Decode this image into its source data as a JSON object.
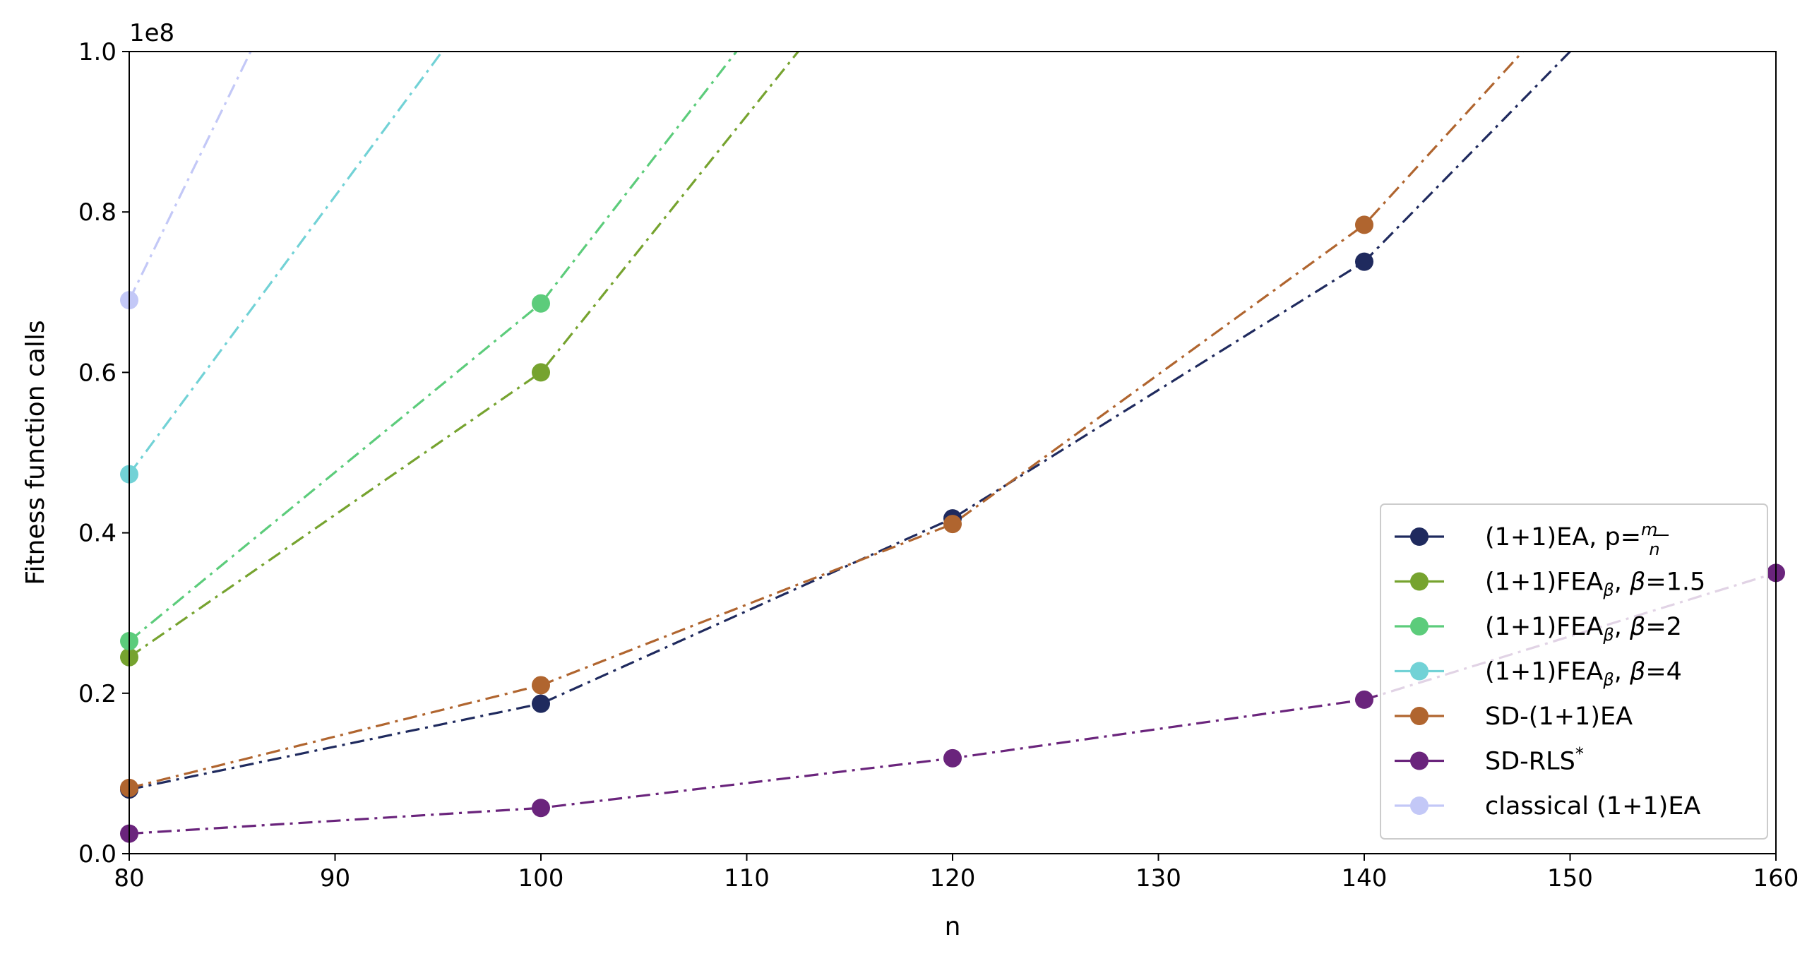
{
  "chart_data": {
    "type": "line",
    "xlabel": "n",
    "ylabel": "Fitness function calls",
    "y_scale_label": "1e8",
    "xlim": [
      80,
      160
    ],
    "ylim": [
      0,
      100000000
    ],
    "x_ticks": [
      80,
      90,
      100,
      110,
      120,
      130,
      140,
      150,
      160
    ],
    "x_tick_labels": [
      "80",
      "90",
      "100",
      "110",
      "120",
      "130",
      "140",
      "150",
      "160"
    ],
    "y_ticks": [
      0,
      20000000,
      40000000,
      60000000,
      80000000,
      100000000
    ],
    "y_tick_labels": [
      "0.0",
      "0.2",
      "0.4",
      "0.6",
      "0.8",
      "1.0"
    ],
    "grid": false,
    "legend_position": "lower-right",
    "line_style": "dash-dot",
    "series": [
      {
        "name": "(1+1)EA, p=m/n",
        "legend": {
          "base": "(1+1)EA, p=",
          "frac_num": "m",
          "frac_den": "n"
        },
        "color": "#1f2a5e",
        "x": [
          80,
          100,
          120,
          140,
          150
        ],
        "values": [
          8000000,
          18700000,
          41800000,
          73800000,
          100000000
        ]
      },
      {
        "name": "(1+1)FEAβ, β=1.5",
        "legend": {
          "base": "(1+1)FEA",
          "sub": "β",
          "rest": ", ",
          "param": "β",
          "tail": "=1.5"
        },
        "color": "#76a32f",
        "x": [
          80,
          100,
          112.5
        ],
        "values": [
          24500000,
          60000000,
          100000000
        ]
      },
      {
        "name": "(1+1)FEAβ, β=2",
        "legend": {
          "base": "(1+1)FEA",
          "sub": "β",
          "rest": ", ",
          "param": "β",
          "tail": "=2"
        },
        "color": "#5ccc7b",
        "x": [
          80,
          100,
          109.5
        ],
        "values": [
          26500000,
          68600000,
          100000000
        ]
      },
      {
        "name": "(1+1)FEAβ, β=4",
        "legend": {
          "base": "(1+1)FEA",
          "sub": "β",
          "rest": ", ",
          "param": "β",
          "tail": "=4"
        },
        "color": "#72d2d6",
        "x": [
          80,
          95.2
        ],
        "values": [
          47300000,
          100000000
        ]
      },
      {
        "name": "SD-(1+1)EA",
        "legend": {
          "base": "SD-(1+1)EA"
        },
        "color": "#b0652f",
        "x": [
          80,
          100,
          120,
          140,
          147.7
        ],
        "values": [
          8200000,
          21000000,
          41100000,
          78400000,
          100000000
        ]
      },
      {
        "name": "SD-RLS*",
        "legend": {
          "base": "SD-RLS",
          "sup": "*"
        },
        "color": "#6a247c",
        "x": [
          80,
          100,
          120,
          140,
          160
        ],
        "values": [
          2500000,
          5700000,
          11900000,
          19200000,
          35000000
        ]
      },
      {
        "name": "classical (1+1)EA",
        "legend": {
          "base": "classical (1+1)EA"
        },
        "color": "#c3c8f7",
        "x": [
          80,
          85.9
        ],
        "values": [
          69000000,
          100000000
        ]
      }
    ],
    "markers": {
      "(1+1)EA, p=m/n": [
        80,
        100,
        120,
        140
      ],
      "(1+1)FEAβ, β=1.5": [
        80,
        100
      ],
      "(1+1)FEAβ, β=2": [
        80,
        100
      ],
      "(1+1)FEAβ, β=4": [
        80
      ],
      "SD-(1+1)EA": [
        80,
        100,
        120,
        140
      ],
      "SD-RLS*": [
        80,
        100,
        120,
        140,
        160
      ],
      "classical (1+1)EA": [
        80
      ]
    }
  }
}
